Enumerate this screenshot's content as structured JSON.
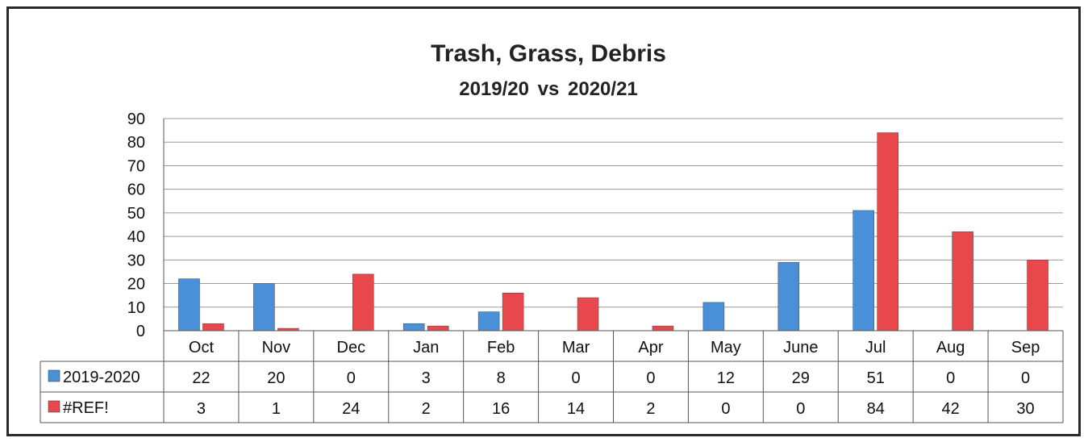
{
  "chart_data": {
    "type": "bar",
    "title": "Trash, Grass, Debris",
    "subtitle": "2019/20 vs 2020/21",
    "categories": [
      "Oct",
      "Nov",
      "Dec",
      "Jan",
      "Feb",
      "Mar",
      "Apr",
      "May",
      "June",
      "Jul",
      "Aug",
      "Sep"
    ],
    "series": [
      {
        "name": "2019-2020",
        "color": "#4a90d9",
        "values": [
          22,
          20,
          0,
          3,
          8,
          0,
          0,
          12,
          29,
          51,
          0,
          0
        ]
      },
      {
        "name": "#REF!",
        "color": "#e8474c",
        "values": [
          3,
          1,
          24,
          2,
          16,
          14,
          2,
          0,
          0,
          84,
          42,
          30
        ]
      }
    ],
    "yticks": [
      0,
      10,
      20,
      30,
      40,
      50,
      60,
      70,
      80,
      90
    ],
    "ylim": [
      0,
      90
    ],
    "grid": true,
    "legend": "data-table",
    "data_table": true
  }
}
